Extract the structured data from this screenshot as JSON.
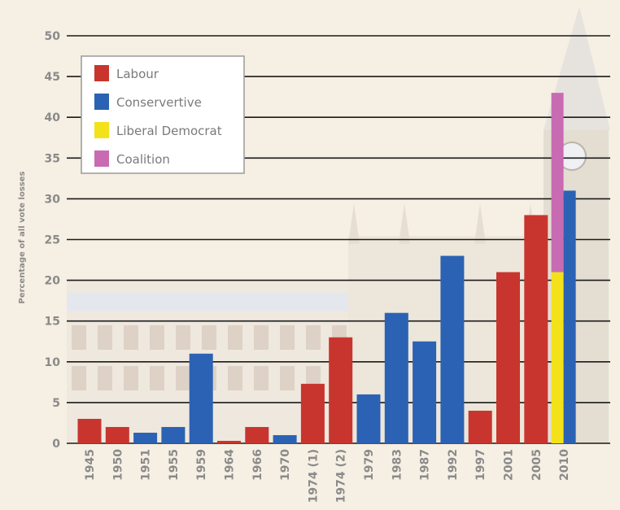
{
  "chart_data": {
    "type": "bar",
    "title": "",
    "xlabel": "",
    "ylabel": "Percentage of all vote losses",
    "ylim": [
      0,
      50
    ],
    "yticks": [
      0,
      5,
      10,
      15,
      20,
      25,
      30,
      35,
      40,
      45,
      50
    ],
    "grid": true,
    "legend_position": "top-left",
    "colors": {
      "Labour": "#c8352e",
      "Conservertive": "#2b62b4",
      "Liberal Democrat": "#f3e11a",
      "Coalition": "#c86bb3"
    },
    "legend": [
      "Labour",
      "Conservertive",
      "Liberal Democrat",
      "Coalition"
    ],
    "categories": [
      "1945",
      "1950",
      "1951",
      "1955",
      "1959",
      "1964",
      "1966",
      "1970",
      "1974 (1)",
      "1974 (2)",
      "1979",
      "1983",
      "1987",
      "1992",
      "1997",
      "2001",
      "2005",
      "2010"
    ],
    "bars": [
      {
        "year": "1945",
        "party": "Labour",
        "value": 3
      },
      {
        "year": "1950",
        "party": "Labour",
        "value": 2
      },
      {
        "year": "1951",
        "party": "Conservertive",
        "value": 1.3
      },
      {
        "year": "1955",
        "party": "Conservertive",
        "value": 2
      },
      {
        "year": "1959",
        "party": "Conservertive",
        "value": 11
      },
      {
        "year": "1964",
        "party": "Labour",
        "value": 0.3
      },
      {
        "year": "1966",
        "party": "Labour",
        "value": 2
      },
      {
        "year": "1970",
        "party": "Conservertive",
        "value": 1
      },
      {
        "year": "1974 (1)",
        "party": "Labour",
        "value": 7.3
      },
      {
        "year": "1974 (2)",
        "party": "Labour",
        "value": 13
      },
      {
        "year": "1979",
        "party": "Conservertive",
        "value": 6
      },
      {
        "year": "1983",
        "party": "Conservertive",
        "value": 16
      },
      {
        "year": "1987",
        "party": "Conservertive",
        "value": 12.5
      },
      {
        "year": "1992",
        "party": "Conservertive",
        "value": 23
      },
      {
        "year": "1997",
        "party": "Labour",
        "value": 4
      },
      {
        "year": "2001",
        "party": "Labour",
        "value": 21
      },
      {
        "year": "2005",
        "party": "Labour",
        "value": 28
      },
      {
        "year": "2010",
        "stack": [
          {
            "party": "Liberal Democrat",
            "value": 21
          },
          {
            "party": "Coalition",
            "value": 43
          }
        ]
      },
      {
        "year": "2010",
        "party": "Conservertive",
        "value": 31
      }
    ]
  }
}
